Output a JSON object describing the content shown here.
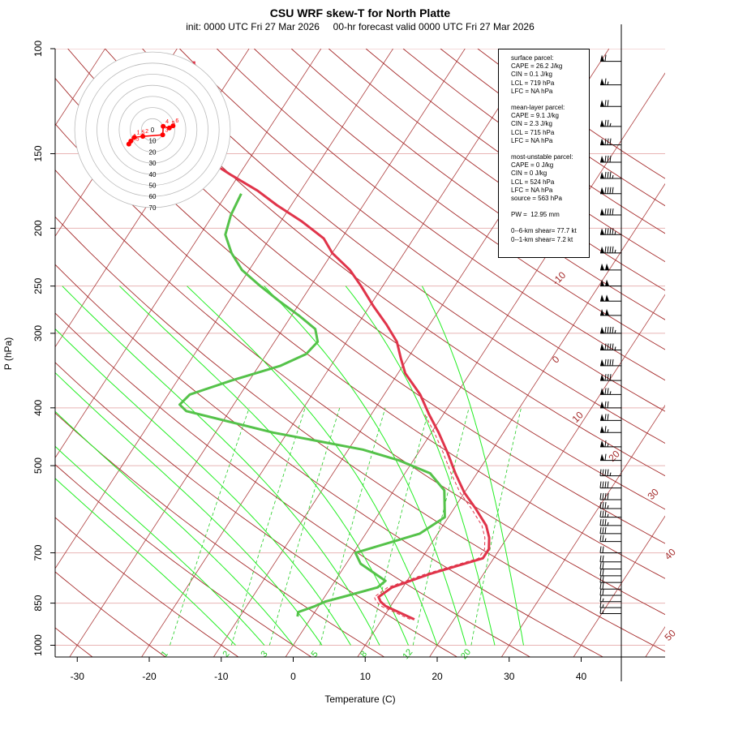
{
  "chart_data": {
    "type": "line",
    "title": "CSU WRF skew-T for North Platte",
    "subtitle": "init: 0000 UTC Fri 27 Mar 2026     00-hr forecast valid 0000 UTC Fri 27 Mar 2026",
    "xlabel": "Temperature (C)",
    "ylabel": "P (hPa)",
    "xlim": [
      -33,
      44
    ],
    "ylim": [
      1050,
      100
    ],
    "log_y": true,
    "x_ticks": [
      "-30",
      "-20",
      "-10",
      "0",
      "10",
      "20",
      "30",
      "40"
    ],
    "y_ticks": [
      "1000",
      "850",
      "700",
      "500",
      "400",
      "300",
      "250",
      "200",
      "150",
      "100"
    ],
    "isotherm_labels": [
      "-10",
      "0",
      "10",
      "20",
      "30",
      "40",
      "50"
    ],
    "mixing_ratio_labels": [
      "1",
      "2",
      "3",
      "5",
      "8",
      "12",
      "20"
    ],
    "colors": {
      "temperature": "#e0344a",
      "dewpoint": "#55c24a",
      "isotherm": "#a52a2a",
      "dry_adiabat": "#a52a2a",
      "moist_adiabat": "#22ee22",
      "mixing_ratio": "#22cc22",
      "hodograph": "#ff0000",
      "wind_barb": "#000000"
    },
    "series": [
      {
        "name": "temperature",
        "points": [
          [
            14.5,
            905
          ],
          [
            9.3,
            860
          ],
          [
            8.2,
            845
          ],
          [
            7.5,
            830
          ],
          [
            8.5,
            800
          ],
          [
            12.5,
            760
          ],
          [
            18.5,
            715
          ],
          [
            18.5,
            690
          ],
          [
            17.5,
            660
          ],
          [
            16.0,
            630
          ],
          [
            13.0,
            590
          ],
          [
            10.0,
            555
          ],
          [
            7.0,
            515
          ],
          [
            4.0,
            475
          ],
          [
            1.0,
            440
          ],
          [
            -2.0,
            410
          ],
          [
            -5.0,
            380
          ],
          [
            -9.0,
            350
          ],
          [
            -11.0,
            330
          ],
          [
            -13.0,
            310
          ],
          [
            -16.0,
            290
          ],
          [
            -19.5,
            270
          ],
          [
            -23.0,
            250
          ],
          [
            -26.0,
            235
          ],
          [
            -30.0,
            220
          ],
          [
            -32.5,
            208
          ],
          [
            -37.0,
            195
          ],
          [
            -42.0,
            183
          ],
          [
            -46.0,
            173
          ],
          [
            -51.0,
            163
          ],
          [
            -54.0,
            157
          ],
          [
            -56.0,
            150
          ],
          [
            -58.5,
            142
          ],
          [
            -60.5,
            135
          ],
          [
            -62.5,
            127
          ],
          [
            -63.5,
            120
          ],
          [
            -65.0,
            112
          ],
          [
            -66.5,
            105
          ]
        ]
      },
      {
        "name": "dewpoint",
        "points": [
          [
            -2.0,
            895
          ],
          [
            -2.3,
            880
          ],
          [
            -0.5,
            860
          ],
          [
            0.5,
            845
          ],
          [
            2.5,
            830
          ],
          [
            6.5,
            800
          ],
          [
            7.0,
            780
          ],
          [
            2.0,
            730
          ],
          [
            0.3,
            700
          ],
          [
            7.5,
            650
          ],
          [
            9.5,
            610
          ],
          [
            7.0,
            550
          ],
          [
            3.5,
            515
          ],
          [
            -2.0,
            490
          ],
          [
            -8.0,
            470
          ],
          [
            -22.0,
            440
          ],
          [
            -36.0,
            405
          ],
          [
            -37.5,
            395
          ],
          [
            -37.0,
            380
          ],
          [
            -32.5,
            360
          ],
          [
            -27.0,
            340
          ],
          [
            -24.5,
            325
          ],
          [
            -24.0,
            310
          ],
          [
            -25.5,
            295
          ],
          [
            -29.0,
            280
          ],
          [
            -33.0,
            265
          ],
          [
            -37.0,
            250
          ],
          [
            -41.0,
            235
          ],
          [
            -44.0,
            220
          ],
          [
            -46.5,
            205
          ],
          [
            -47.5,
            190
          ],
          [
            -48.0,
            175
          ]
        ]
      }
    ],
    "hodograph": {
      "ring_labels": [
        "0",
        "10",
        "20",
        "30",
        "40",
        "50",
        "60",
        "70"
      ],
      "point_labels": [
        "0.5",
        "1",
        "1.5",
        "2",
        "3",
        "4",
        "5",
        "6"
      ],
      "points": [
        [
          -21.3,
          -12.9
        ],
        [
          -19.5,
          -10.2
        ],
        [
          -16.3,
          -6.8
        ],
        [
          -8.7,
          -5.9
        ],
        [
          9.2,
          -4.6
        ],
        [
          9.6,
          3.1
        ],
        [
          15.2,
          1.6
        ],
        [
          18.5,
          3.6
        ]
      ]
    },
    "wind_barbs": [
      {
        "p": 105,
        "kt": 60
      },
      {
        "p": 115,
        "kt": 65
      },
      {
        "p": 125,
        "kt": 70
      },
      {
        "p": 135,
        "kt": 75
      },
      {
        "p": 145,
        "kt": 80
      },
      {
        "p": 155,
        "kt": 80
      },
      {
        "p": 165,
        "kt": 85
      },
      {
        "p": 175,
        "kt": 90
      },
      {
        "p": 190,
        "kt": 90
      },
      {
        "p": 205,
        "kt": 95
      },
      {
        "p": 220,
        "kt": 95
      },
      {
        "p": 235,
        "kt": 100
      },
      {
        "p": 250,
        "kt": 100
      },
      {
        "p": 265,
        "kt": 100
      },
      {
        "p": 280,
        "kt": 100
      },
      {
        "p": 300,
        "kt": 95
      },
      {
        "p": 320,
        "kt": 95
      },
      {
        "p": 340,
        "kt": 90
      },
      {
        "p": 360,
        "kt": 80
      },
      {
        "p": 380,
        "kt": 75
      },
      {
        "p": 400,
        "kt": 70
      },
      {
        "p": 420,
        "kt": 70
      },
      {
        "p": 440,
        "kt": 65
      },
      {
        "p": 465,
        "kt": 65
      },
      {
        "p": 490,
        "kt": 60
      },
      {
        "p": 520,
        "kt": 45
      },
      {
        "p": 545,
        "kt": 40
      },
      {
        "p": 570,
        "kt": 40
      },
      {
        "p": 590,
        "kt": 35
      },
      {
        "p": 610,
        "kt": 35
      },
      {
        "p": 630,
        "kt": 35
      },
      {
        "p": 650,
        "kt": 30
      },
      {
        "p": 670,
        "kt": 25
      },
      {
        "p": 700,
        "kt": 20
      },
      {
        "p": 725,
        "kt": 20
      },
      {
        "p": 745,
        "kt": 20
      },
      {
        "p": 765,
        "kt": 20
      },
      {
        "p": 785,
        "kt": 20
      },
      {
        "p": 805,
        "kt": 20
      },
      {
        "p": 825,
        "kt": 20
      },
      {
        "p": 845,
        "kt": 15
      },
      {
        "p": 865,
        "kt": 15
      },
      {
        "p": 885,
        "kt": 15
      }
    ]
  },
  "info": {
    "surface": [
      "surface parcel:",
      "CAPE = 26.2 J/kg",
      "CIN = 0.1 J/kg",
      "LCL = 719 hPa",
      "LFC = NA hPa"
    ],
    "mean_layer": [
      "mean-layer parcel:",
      "CAPE = 9.1 J/kg",
      "CIN = 2.3 J/kg",
      "LCL = 715 hPa",
      "LFC = NA hPa"
    ],
    "most_unstable": [
      "most-unstable parcel:",
      "CAPE = 0 J/kg",
      "CIN = 0 J/kg",
      "LCL = 524 hPa",
      "LFC = NA hPa",
      "source = 563 hPa"
    ],
    "pw": "PW =  12.95 mm",
    "shear": [
      "0--6-km shear= 77.7 kt",
      "0--1-km shear= 7.2 kt"
    ]
  }
}
